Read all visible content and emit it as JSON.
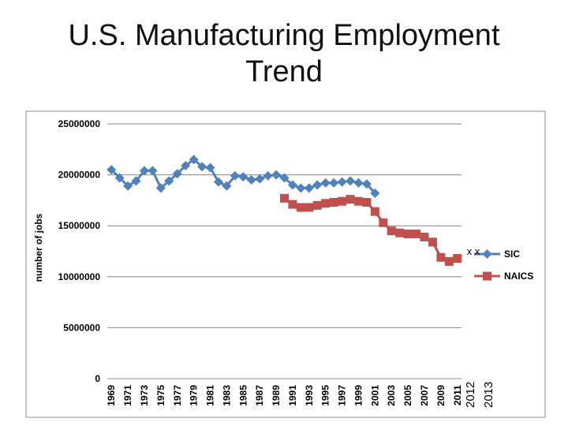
{
  "slide": {
    "title_line1": "U.S. Manufacturing Employment",
    "title_line2": "Trend"
  },
  "chart_data": {
    "type": "line",
    "title": "U.S. Manufacturing Employment Trend",
    "xlabel": "",
    "ylabel": "number of jobs",
    "ylim": [
      0,
      25000000
    ],
    "yticks": [
      "0",
      "5000000",
      "10000000",
      "15000000",
      "20000000",
      "25000000"
    ],
    "ytick_values": [
      0,
      5000000,
      10000000,
      15000000,
      20000000,
      25000000
    ],
    "x_years": [
      1969,
      1970,
      1971,
      1972,
      1973,
      1974,
      1975,
      1976,
      1977,
      1978,
      1979,
      1980,
      1981,
      1982,
      1983,
      1984,
      1985,
      1986,
      1987,
      1988,
      1989,
      1990,
      1991,
      1992,
      1993,
      1994,
      1995,
      1996,
      1997,
      1998,
      1999,
      2000,
      2001,
      2002,
      2003,
      2004,
      2005,
      2006,
      2007,
      2008,
      2009,
      2010,
      2011
    ],
    "x_tick_labels_small": [
      "1969",
      "1971",
      "1973",
      "1975",
      "1977",
      "1979",
      "1981",
      "1983",
      "1985",
      "1987",
      "1989",
      "1991",
      "1993",
      "1995",
      "1997",
      "1999",
      "2001",
      "2003",
      "2005",
      "2007",
      "2009",
      "2011"
    ],
    "x_tick_labels_large": [
      "2012",
      "2013"
    ],
    "series": [
      {
        "name": "SIC",
        "color": "#4F81BD",
        "marker": "diamond",
        "x": [
          1969,
          1970,
          1971,
          1972,
          1973,
          1974,
          1975,
          1976,
          1977,
          1978,
          1979,
          1980,
          1981,
          1982,
          1983,
          1984,
          1985,
          1986,
          1987,
          1988,
          1989,
          1990,
          1991,
          1992,
          1993,
          1994,
          1995,
          1996,
          1997,
          1998,
          1999,
          2000,
          2001
        ],
        "values": [
          20500000,
          19700000,
          18900000,
          19400000,
          20400000,
          20400000,
          18700000,
          19400000,
          20100000,
          20900000,
          21500000,
          20800000,
          20700000,
          19300000,
          18900000,
          19900000,
          19800000,
          19500000,
          19600000,
          19900000,
          20000000,
          19700000,
          19000000,
          18700000,
          18700000,
          19000000,
          19200000,
          19200000,
          19300000,
          19400000,
          19200000,
          19100000,
          18200000
        ]
      },
      {
        "name": "NAICS",
        "color": "#C0504D",
        "marker": "square",
        "x": [
          1990,
          1991,
          1992,
          1993,
          1994,
          1995,
          1996,
          1997,
          1998,
          1999,
          2000,
          2001,
          2002,
          2003,
          2004,
          2005,
          2006,
          2007,
          2008,
          2009,
          2010,
          2011
        ],
        "values": [
          17700000,
          17100000,
          16800000,
          16800000,
          17000000,
          17200000,
          17300000,
          17400000,
          17600000,
          17400000,
          17300000,
          16400000,
          15300000,
          14500000,
          14300000,
          14200000,
          14200000,
          13900000,
          13400000,
          11900000,
          11500000,
          11800000
        ]
      }
    ],
    "annotation": "x x",
    "legend_position": "right"
  }
}
